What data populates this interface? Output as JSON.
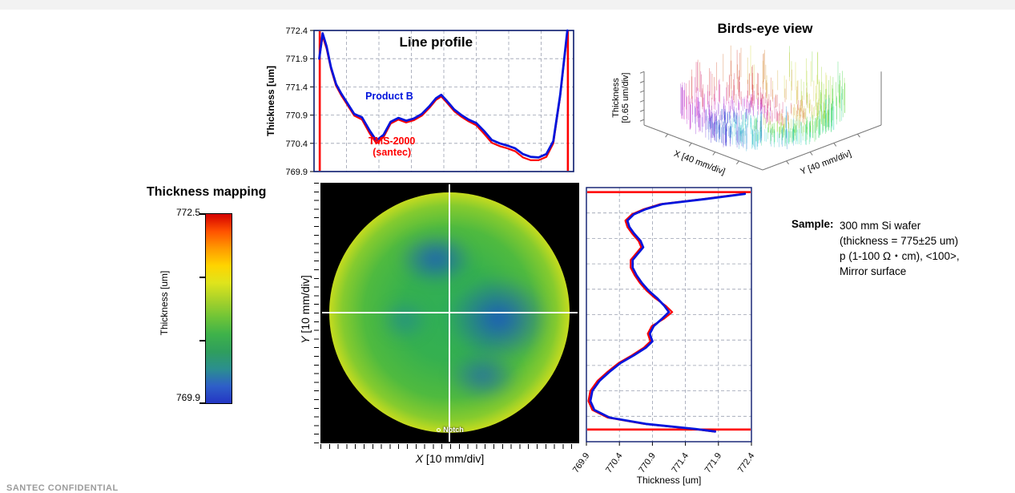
{
  "footer": {
    "text": "SANTEC CONFIDENTIAL"
  },
  "sample": {
    "label": "Sample:",
    "lines": [
      "300 mm Si wafer",
      "(thickness = 775±25 um)",
      "p (1-100 Ω・cm), <100>,",
      "Mirror surface"
    ]
  },
  "colorbar": {
    "max_label": "772.5",
    "min_label": "769.9",
    "axis_label": "Thickness [um]",
    "colors_top_to_bottom": [
      "#d40000",
      "#ff5200",
      "#ff9a00",
      "#ffd400",
      "#dfe41c",
      "#a8d22a",
      "#6fc437",
      "#3eb24a",
      "#2f9e5d",
      "#2b8f8f",
      "#2e5fc8",
      "#2436c4"
    ]
  },
  "chart_data": [
    {
      "id": "line_profile",
      "type": "line",
      "title": "Line profile",
      "ylabel": "Thickness [um]",
      "ylim": [
        769.9,
        772.4
      ],
      "yticks": [
        772.4,
        771.9,
        771.4,
        770.9,
        770.4,
        769.9
      ],
      "x_axis": "position across wafer diameter (normalized 0-1)",
      "grid": "dashed",
      "frame_color": "#0a1a6e",
      "edge_positions": [
        0.022,
        0.978
      ],
      "edge_marker_color": "#ff0000",
      "series": [
        {
          "name": "Product B",
          "color": "#0014dc",
          "points": [
            [
              0.02,
              771.9
            ],
            [
              0.033,
              772.35
            ],
            [
              0.048,
              772.12
            ],
            [
              0.065,
              771.75
            ],
            [
              0.085,
              771.45
            ],
            [
              0.105,
              771.28
            ],
            [
              0.13,
              771.1
            ],
            [
              0.155,
              770.92
            ],
            [
              0.185,
              770.86
            ],
            [
              0.215,
              770.62
            ],
            [
              0.24,
              770.45
            ],
            [
              0.268,
              770.55
            ],
            [
              0.295,
              770.78
            ],
            [
              0.325,
              770.85
            ],
            [
              0.355,
              770.8
            ],
            [
              0.385,
              770.84
            ],
            [
              0.415,
              770.92
            ],
            [
              0.445,
              771.06
            ],
            [
              0.47,
              771.2
            ],
            [
              0.49,
              771.26
            ],
            [
              0.512,
              771.15
            ],
            [
              0.54,
              771.0
            ],
            [
              0.568,
              770.9
            ],
            [
              0.595,
              770.82
            ],
            [
              0.625,
              770.76
            ],
            [
              0.655,
              770.62
            ],
            [
              0.685,
              770.46
            ],
            [
              0.715,
              770.4
            ],
            [
              0.745,
              770.36
            ],
            [
              0.775,
              770.31
            ],
            [
              0.805,
              770.21
            ],
            [
              0.835,
              770.16
            ],
            [
              0.865,
              770.15
            ],
            [
              0.895,
              770.21
            ],
            [
              0.922,
              770.44
            ],
            [
              0.948,
              771.25
            ],
            [
              0.965,
              771.95
            ],
            [
              0.976,
              772.4
            ]
          ]
        },
        {
          "name": "TMS-2000 (santec)",
          "label_lines": [
            "TMS-2000",
            "(santec)"
          ],
          "color": "#ff0000",
          "points": [
            [
              0.02,
              771.9
            ],
            [
              0.033,
              772.3
            ],
            [
              0.048,
              772.08
            ],
            [
              0.065,
              771.72
            ],
            [
              0.085,
              771.42
            ],
            [
              0.105,
              771.25
            ],
            [
              0.13,
              771.07
            ],
            [
              0.155,
              770.89
            ],
            [
              0.185,
              770.82
            ],
            [
              0.215,
              770.57
            ],
            [
              0.24,
              770.4
            ],
            [
              0.268,
              770.51
            ],
            [
              0.295,
              770.75
            ],
            [
              0.325,
              770.82
            ],
            [
              0.355,
              770.77
            ],
            [
              0.385,
              770.81
            ],
            [
              0.415,
              770.89
            ],
            [
              0.445,
              771.03
            ],
            [
              0.47,
              771.17
            ],
            [
              0.49,
              771.23
            ],
            [
              0.512,
              771.12
            ],
            [
              0.54,
              770.97
            ],
            [
              0.568,
              770.87
            ],
            [
              0.595,
              770.79
            ],
            [
              0.625,
              770.72
            ],
            [
              0.655,
              770.57
            ],
            [
              0.685,
              770.41
            ],
            [
              0.715,
              770.35
            ],
            [
              0.745,
              770.31
            ],
            [
              0.775,
              770.26
            ],
            [
              0.805,
              770.15
            ],
            [
              0.835,
              770.1
            ],
            [
              0.865,
              770.1
            ],
            [
              0.895,
              770.16
            ],
            [
              0.922,
              770.4
            ],
            [
              0.948,
              771.22
            ],
            [
              0.965,
              771.92
            ],
            [
              0.976,
              772.38
            ]
          ]
        }
      ]
    },
    {
      "id": "y_profile",
      "type": "line",
      "title": "",
      "xlabel": "Thickness [um]",
      "xlim": [
        769.9,
        772.4
      ],
      "xticks": [
        769.9,
        770.4,
        770.9,
        771.4,
        771.9,
        772.4
      ],
      "y_axis": "position along wafer diameter (normalized 0-1, top to bottom)",
      "grid": "dashed",
      "frame_color": "#0a1a6e",
      "edge_positions": [
        0.018,
        0.952
      ],
      "edge_marker_color": "#ff0000",
      "series": [
        {
          "name": "Product B",
          "color": "#0014dc",
          "points": [
            [
              0.025,
              772.3
            ],
            [
              0.045,
              771.7
            ],
            [
              0.065,
              771.05
            ],
            [
              0.085,
              770.8
            ],
            [
              0.105,
              770.62
            ],
            [
              0.13,
              770.52
            ],
            [
              0.155,
              770.55
            ],
            [
              0.18,
              770.62
            ],
            [
              0.21,
              770.72
            ],
            [
              0.235,
              770.76
            ],
            [
              0.26,
              770.68
            ],
            [
              0.285,
              770.6
            ],
            [
              0.315,
              770.6
            ],
            [
              0.345,
              770.66
            ],
            [
              0.375,
              770.74
            ],
            [
              0.405,
              770.84
            ],
            [
              0.435,
              770.97
            ],
            [
              0.465,
              771.08
            ],
            [
              0.49,
              771.15
            ],
            [
              0.515,
              771.05
            ],
            [
              0.545,
              770.92
            ],
            [
              0.575,
              770.86
            ],
            [
              0.605,
              770.9
            ],
            [
              0.63,
              770.8
            ],
            [
              0.66,
              770.62
            ],
            [
              0.69,
              770.42
            ],
            [
              0.725,
              770.25
            ],
            [
              0.76,
              770.1
            ],
            [
              0.8,
              769.99
            ],
            [
              0.84,
              769.96
            ],
            [
              0.875,
              770.02
            ],
            [
              0.905,
              770.25
            ],
            [
              0.93,
              770.8
            ],
            [
              0.95,
              771.55
            ],
            [
              0.96,
              771.85
            ]
          ]
        },
        {
          "name": "TMS-2000 (santec)",
          "color": "#ff0000",
          "points": [
            [
              0.025,
              772.26
            ],
            [
              0.045,
              771.66
            ],
            [
              0.065,
              771.02
            ],
            [
              0.085,
              770.77
            ],
            [
              0.105,
              770.59
            ],
            [
              0.13,
              770.49
            ],
            [
              0.155,
              770.52
            ],
            [
              0.18,
              770.59
            ],
            [
              0.21,
              770.69
            ],
            [
              0.235,
              770.73
            ],
            [
              0.26,
              770.65
            ],
            [
              0.285,
              770.57
            ],
            [
              0.315,
              770.57
            ],
            [
              0.345,
              770.63
            ],
            [
              0.375,
              770.71
            ],
            [
              0.405,
              770.81
            ],
            [
              0.435,
              770.94
            ],
            [
              0.465,
              771.1
            ],
            [
              0.49,
              771.2
            ],
            [
              0.515,
              771.08
            ],
            [
              0.545,
              770.89
            ],
            [
              0.575,
              770.83
            ],
            [
              0.605,
              770.87
            ],
            [
              0.63,
              770.77
            ],
            [
              0.66,
              770.59
            ],
            [
              0.69,
              770.39
            ],
            [
              0.725,
              770.22
            ],
            [
              0.76,
              770.07
            ],
            [
              0.8,
              769.96
            ],
            [
              0.84,
              769.93
            ],
            [
              0.875,
              769.99
            ],
            [
              0.905,
              770.22
            ],
            [
              0.93,
              770.77
            ],
            [
              0.95,
              771.52
            ],
            [
              0.96,
              771.82
            ]
          ]
        }
      ]
    },
    {
      "id": "wafer_map",
      "type": "heatmap",
      "title": "Thickness mapping",
      "xlabel": "X [10 mm/div]",
      "xlabel_var": "X",
      "xlabel_rest": " [10 mm/div]",
      "ylabel": "Y [10 mm/div]",
      "ylabel_var": "Y",
      "ylabel_rest": " [10 mm/div]",
      "zlabel": "Thickness [um]",
      "zlim": [
        769.9,
        772.5
      ],
      "notch_label": "Notch",
      "shape": "circular 300 mm wafer on black background, white crosshair through center, notch at bottom center",
      "values_um": {
        "edge_ring": 772.4,
        "interior_mean": 770.8,
        "low_spots": 770.0,
        "low_spot_locations": [
          "upper center",
          "center right",
          "lower center-right"
        ]
      }
    },
    {
      "id": "birds_eye",
      "type": "3d-surface",
      "title": "Birds-eye view",
      "zlabel": "Thickness [0.65 um/div]",
      "zlabel_lines": [
        "Thickness",
        "[0.65 um/div]"
      ],
      "xlabel": "X [40 mm/div]",
      "ylabel": "Y [40 mm/div]",
      "shape": "bowl-shaped surface: raised rim at wafer edge, recessed center"
    }
  ]
}
